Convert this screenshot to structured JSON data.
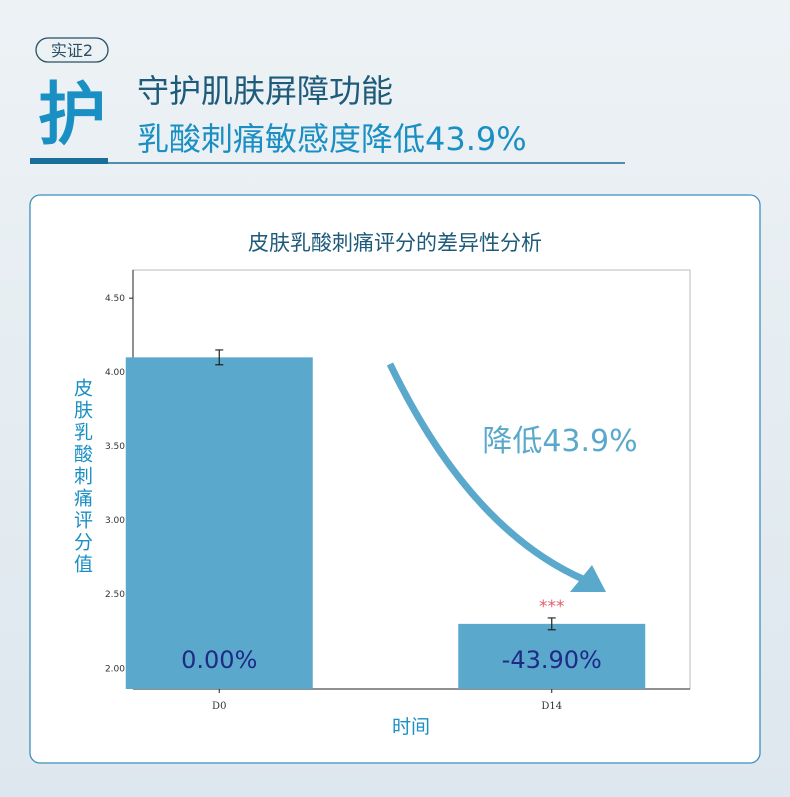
{
  "header": {
    "tag": "实证2",
    "icon_char": "护",
    "title": "守护肌肤屏障功能",
    "subtitle": "乳酸刺痛敏感度降低43.9%"
  },
  "chart_data": {
    "type": "bar",
    "title": "皮肤乳酸刺痛评分的差异性分析",
    "x_label": "时间",
    "y_label": "皮肤乳酸刺痛评分值",
    "categories": [
      "D0",
      "D14"
    ],
    "values": [
      4.1,
      2.3
    ],
    "errors": [
      0.05,
      0.04
    ],
    "bar_labels": [
      "0.00%",
      "-43.90%"
    ],
    "color": "#5aa9cc",
    "significance": [
      "",
      "***"
    ],
    "annotation": "降低43.9%",
    "ylim": [
      1.86,
      4.69
    ],
    "yticks": [
      {
        "value": 2,
        "label": "2.00"
      },
      {
        "value": 2.5,
        "label": "2.50"
      },
      {
        "value": 3,
        "label": "3.00"
      },
      {
        "value": 3.5,
        "label": "3.50"
      },
      {
        "value": 4,
        "label": "4.00"
      },
      {
        "value": 4.5,
        "label": "4.50"
      }
    ]
  }
}
